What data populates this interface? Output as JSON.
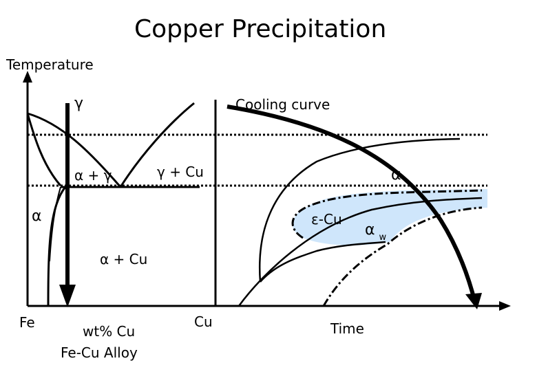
{
  "title": "Copper Precipitation",
  "labels": {
    "temperature": "Temperature",
    "gamma": "γ",
    "cooling_curve": "Cooling curve",
    "alpha_gamma": "α + γ",
    "gamma_cu": "γ + Cu",
    "alpha_left": "α",
    "alpha_cu": "α + Cu",
    "alpha_right": "α",
    "epsilon_cu": "ε-Cu",
    "alpha_w": "α",
    "alpha_w_sub": "w",
    "fe": "Fe",
    "wt_cu": "wt% Cu",
    "alloy": "Fe-Cu Alloy",
    "cu": "Cu",
    "time": "Time"
  },
  "colors": {
    "line": "#000000",
    "epsilon_region": "#cfe6fb"
  }
}
